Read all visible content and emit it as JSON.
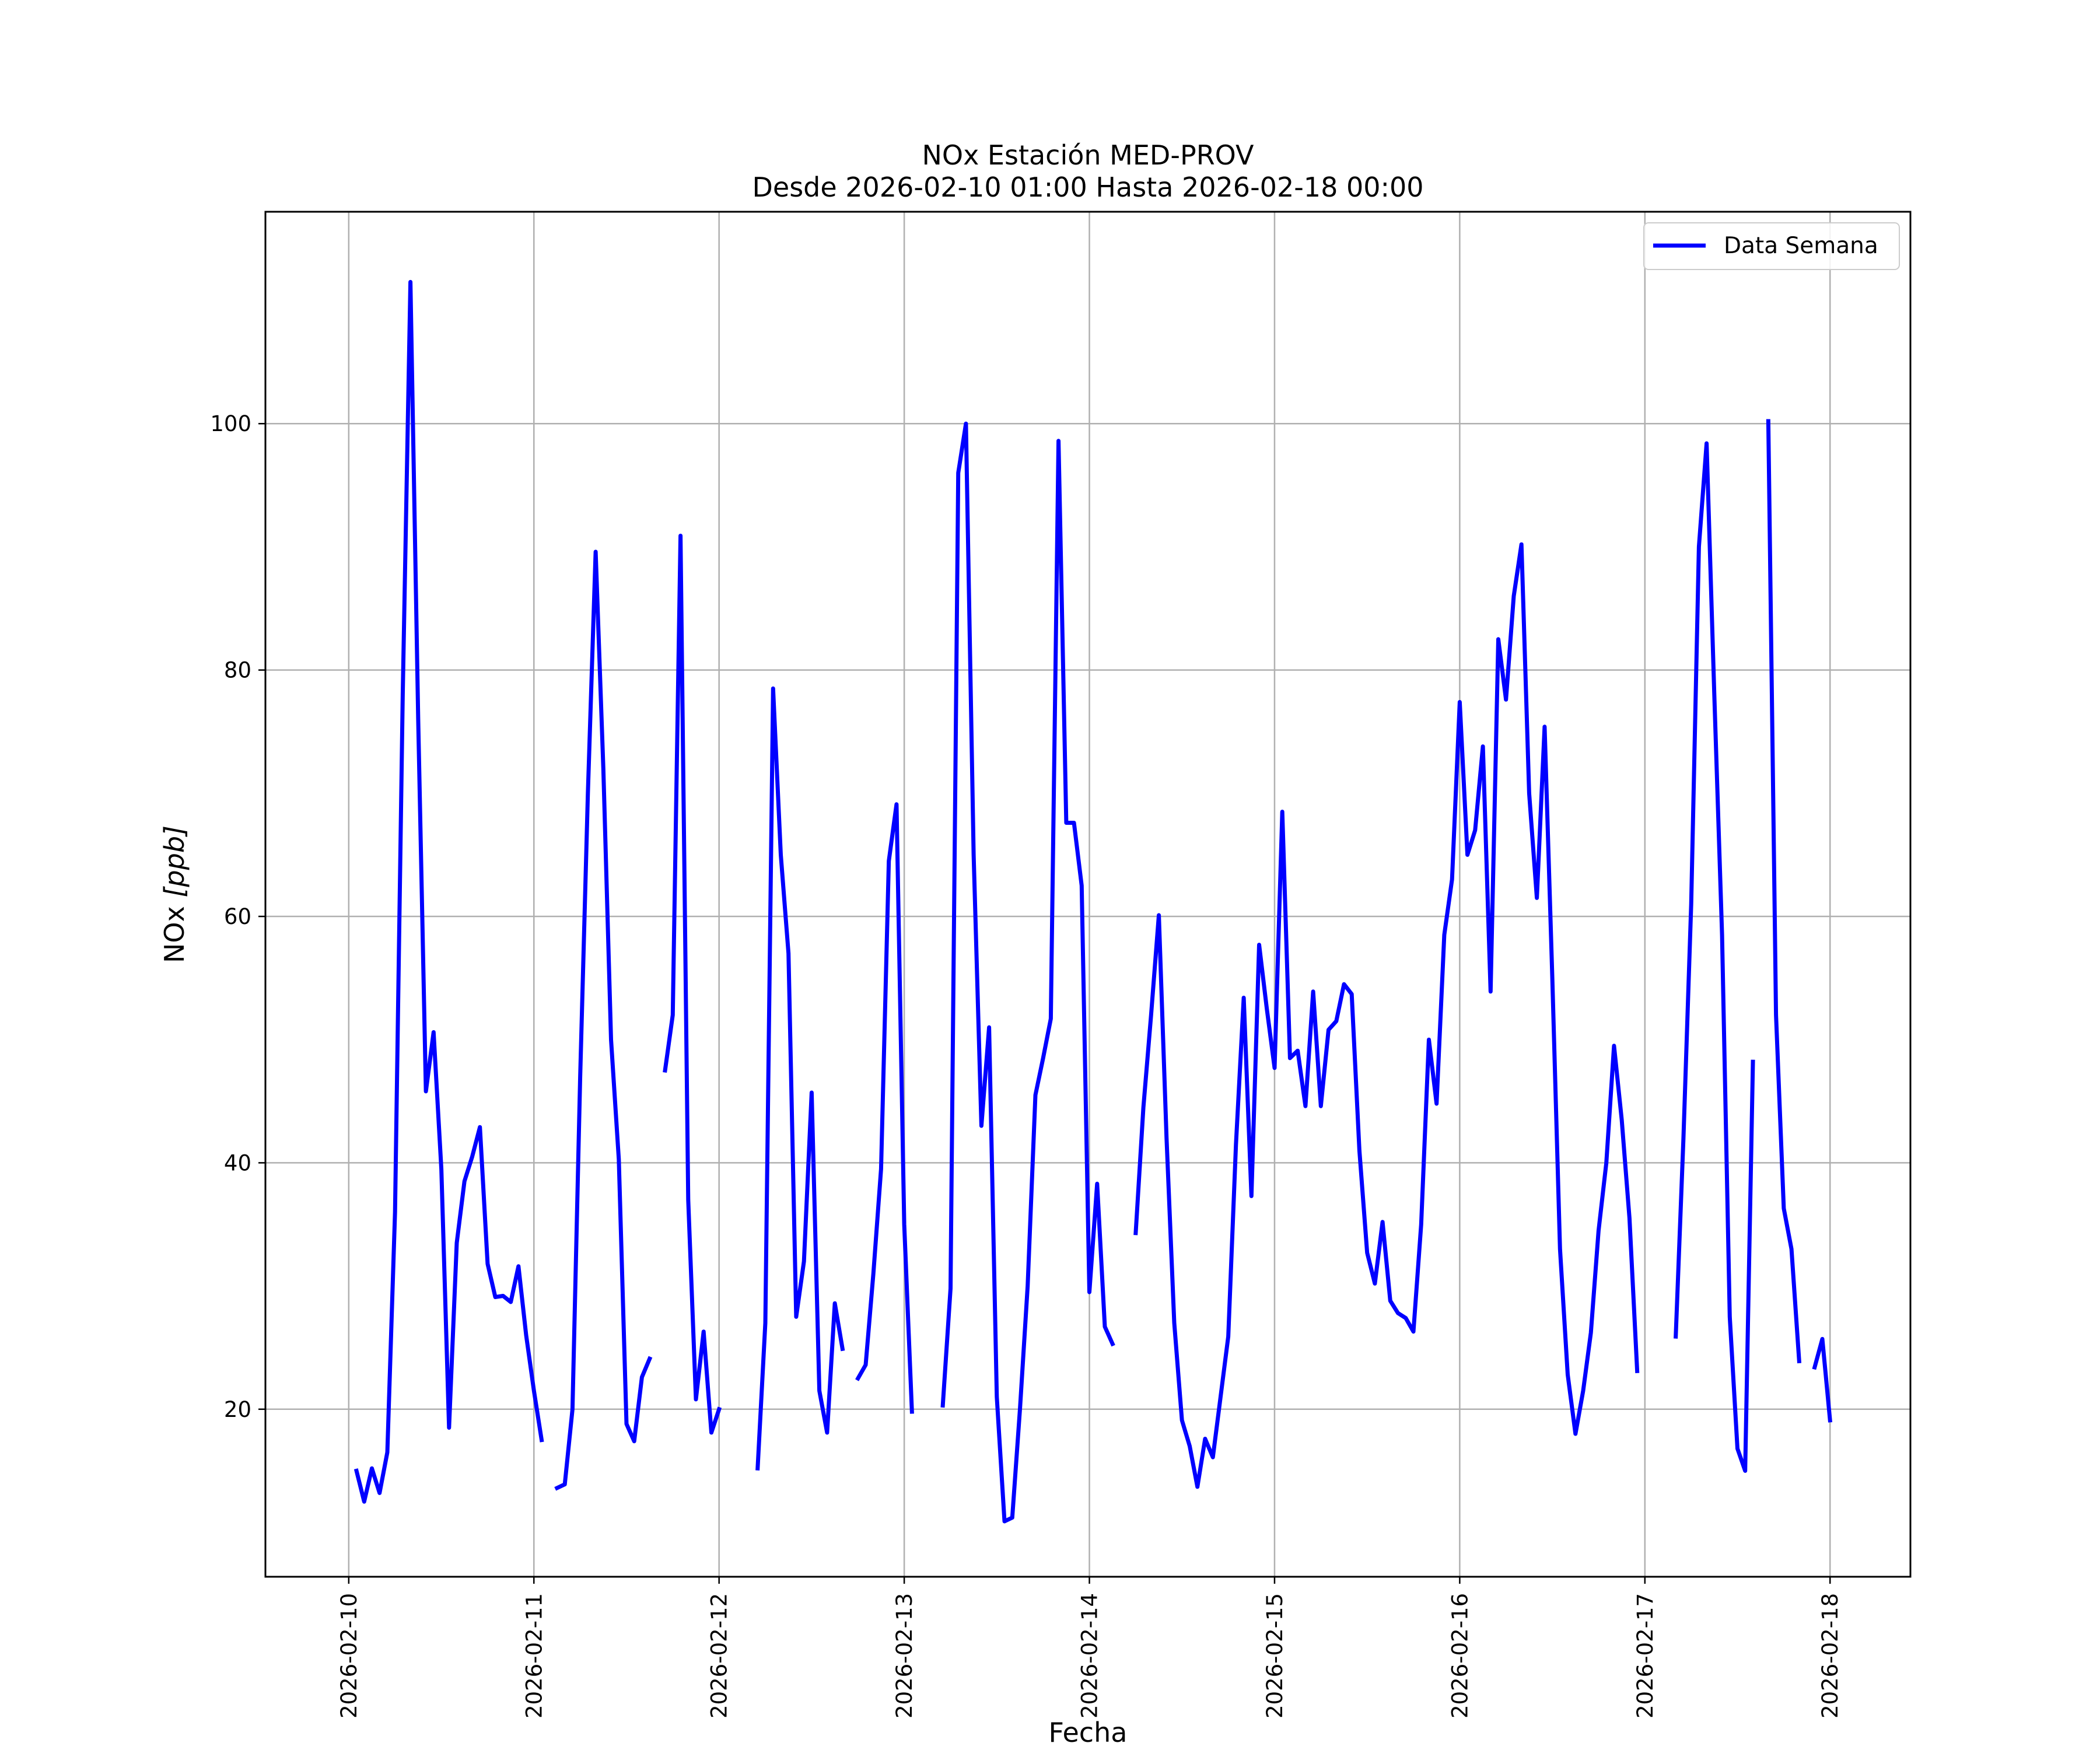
{
  "chart_data": {
    "type": "line",
    "title": "NOx Estación MED-PROV",
    "subtitle": "Desde 2026-02-10 01:00 Hasta 2026-02-18 00:00",
    "xlabel": "Fecha",
    "ylabel_main": "NOx",
    "ylabel_unit": "[ppb]",
    "x_ticks": [
      "2026-02-10",
      "2026-02-11",
      "2026-02-12",
      "2026-02-13",
      "2026-02-14",
      "2026-02-15",
      "2026-02-16",
      "2026-02-17",
      "2026-02-18"
    ],
    "y_ticks": [
      20,
      40,
      60,
      80,
      100
    ],
    "xlim": [
      "2026-02-09 13:12",
      "2026-02-18 10:25"
    ],
    "ylim": [
      6.4,
      117.2
    ],
    "grid": true,
    "legend_position": "top-right",
    "colors": {
      "series": "#0000ff",
      "grid": "#b0b0b0"
    },
    "series": [
      {
        "name": "Data Semana",
        "segments": [
          [
            [
              "2026-02-10 01:00",
              15.0
            ],
            [
              "2026-02-10 02:00",
              12.5
            ],
            [
              "2026-02-10 03:00",
              15.2
            ],
            [
              "2026-02-10 04:00",
              13.2
            ],
            [
              "2026-02-10 05:00",
              16.5
            ],
            [
              "2026-02-10 06:00",
              36.0
            ],
            [
              "2026-02-10 07:00",
              78.0
            ],
            [
              "2026-02-10 08:00",
              111.5
            ],
            [
              "2026-02-10 09:00",
              76.0
            ],
            [
              "2026-02-10 10:00",
              45.8
            ],
            [
              "2026-02-10 11:00",
              50.6
            ],
            [
              "2026-02-10 12:00",
              39.5
            ],
            [
              "2026-02-10 13:00",
              18.5
            ],
            [
              "2026-02-10 14:00",
              33.5
            ],
            [
              "2026-02-10 15:00",
              38.5
            ],
            [
              "2026-02-10 16:00",
              40.5
            ],
            [
              "2026-02-10 17:00",
              42.9
            ],
            [
              "2026-02-10 18:00",
              31.8
            ],
            [
              "2026-02-10 19:00",
              29.1
            ],
            [
              "2026-02-10 20:00",
              29.2
            ],
            [
              "2026-02-10 21:00",
              28.7
            ],
            [
              "2026-02-10 22:00",
              31.6
            ],
            [
              "2026-02-10 23:00",
              26.0
            ],
            [
              "2026-02-11 00:00",
              21.5
            ],
            [
              "2026-02-11 01:00",
              17.5
            ]
          ],
          [
            [
              "2026-02-11 03:00",
              13.6
            ],
            [
              "2026-02-11 04:00",
              13.9
            ],
            [
              "2026-02-11 05:00",
              20.0
            ],
            [
              "2026-02-11 06:00",
              47.0
            ],
            [
              "2026-02-11 07:00",
              70.0
            ],
            [
              "2026-02-11 08:00",
              89.6
            ],
            [
              "2026-02-11 09:00",
              72.0
            ],
            [
              "2026-02-11 10:00",
              50.0
            ],
            [
              "2026-02-11 11:00",
              40.3
            ],
            [
              "2026-02-11 12:00",
              18.8
            ],
            [
              "2026-02-11 13:00",
              17.4
            ],
            [
              "2026-02-11 14:00",
              22.6
            ],
            [
              "2026-02-11 15:00",
              24.1
            ]
          ],
          [
            [
              "2026-02-11 17:00",
              47.5
            ],
            [
              "2026-02-11 18:00",
              52.0
            ],
            [
              "2026-02-11 19:00",
              90.9
            ],
            [
              "2026-02-11 20:00",
              37.0
            ],
            [
              "2026-02-11 21:00",
              20.8
            ],
            [
              "2026-02-11 22:00",
              26.3
            ],
            [
              "2026-02-11 23:00",
              18.1
            ],
            [
              "2026-02-12 00:00",
              20.0
            ]
          ],
          [
            [
              "2026-02-12 05:00",
              15.2
            ],
            [
              "2026-02-12 06:00",
              27.0
            ],
            [
              "2026-02-12 07:00",
              78.5
            ],
            [
              "2026-02-12 08:00",
              65.0
            ],
            [
              "2026-02-12 09:00",
              57.0
            ],
            [
              "2026-02-12 10:00",
              27.5
            ],
            [
              "2026-02-12 11:00",
              32.0
            ],
            [
              "2026-02-12 12:00",
              45.7
            ],
            [
              "2026-02-12 13:00",
              21.5
            ],
            [
              "2026-02-12 14:00",
              18.1
            ],
            [
              "2026-02-12 15:00",
              28.6
            ],
            [
              "2026-02-12 16:00",
              24.9
            ]
          ],
          [
            [
              "2026-02-12 18:00",
              22.5
            ],
            [
              "2026-02-12 19:00",
              23.6
            ],
            [
              "2026-02-12 20:00",
              31.0
            ],
            [
              "2026-02-12 21:00",
              39.5
            ],
            [
              "2026-02-12 22:00",
              64.5
            ],
            [
              "2026-02-12 23:00",
              69.1
            ],
            [
              "2026-02-13 00:00",
              35.0
            ],
            [
              "2026-02-13 01:00",
              19.8
            ]
          ],
          [
            [
              "2026-02-13 05:00",
              20.3
            ],
            [
              "2026-02-13 06:00",
              29.8
            ],
            [
              "2026-02-13 07:00",
              96.0
            ],
            [
              "2026-02-13 08:00",
              100.0
            ],
            [
              "2026-02-13 09:00",
              65.0
            ],
            [
              "2026-02-13 10:00",
              43.0
            ],
            [
              "2026-02-13 11:00",
              51.0
            ],
            [
              "2026-02-13 12:00",
              21.0
            ],
            [
              "2026-02-13 13:00",
              10.9
            ],
            [
              "2026-02-13 14:00",
              11.2
            ],
            [
              "2026-02-13 15:00",
              20.0
            ],
            [
              "2026-02-13 16:00",
              30.0
            ],
            [
              "2026-02-13 17:00",
              45.5
            ],
            [
              "2026-02-13 18:00",
              48.5
            ],
            [
              "2026-02-13 19:00",
              51.7
            ],
            [
              "2026-02-13 20:00",
              98.6
            ],
            [
              "2026-02-13 21:00",
              67.6
            ],
            [
              "2026-02-13 22:00",
              67.6
            ],
            [
              "2026-02-13 23:00",
              62.5
            ],
            [
              "2026-02-14 00:00",
              29.5
            ],
            [
              "2026-02-14 01:00",
              38.3
            ],
            [
              "2026-02-14 02:00",
              26.7
            ],
            [
              "2026-02-14 03:00",
              25.3
            ]
          ],
          [
            [
              "2026-02-14 06:00",
              34.3
            ],
            [
              "2026-02-14 07:00",
              44.5
            ],
            [
              "2026-02-14 08:00",
              52.0
            ],
            [
              "2026-02-14 09:00",
              60.1
            ],
            [
              "2026-02-14 10:00",
              42.0
            ],
            [
              "2026-02-14 11:00",
              27.0
            ],
            [
              "2026-02-14 12:00",
              19.1
            ],
            [
              "2026-02-14 13:00",
              17.0
            ],
            [
              "2026-02-14 14:00",
              13.7
            ],
            [
              "2026-02-14 15:00",
              17.6
            ],
            [
              "2026-02-14 16:00",
              16.1
            ],
            [
              "2026-02-14 17:00",
              21.0
            ],
            [
              "2026-02-14 18:00",
              25.9
            ],
            [
              "2026-02-14 19:00",
              41.5
            ],
            [
              "2026-02-14 20:00",
              53.4
            ],
            [
              "2026-02-14 21:00",
              37.3
            ],
            [
              "2026-02-14 22:00",
              57.7
            ],
            [
              "2026-02-14 23:00",
              52.5
            ],
            [
              "2026-02-15 00:00",
              47.7
            ],
            [
              "2026-02-15 01:00",
              68.5
            ],
            [
              "2026-02-15 02:00",
              48.5
            ],
            [
              "2026-02-15 03:00",
              49.1
            ],
            [
              "2026-02-15 04:00",
              44.6
            ],
            [
              "2026-02-15 05:00",
              53.9
            ],
            [
              "2026-02-15 06:00",
              44.6
            ],
            [
              "2026-02-15 07:00",
              50.8
            ],
            [
              "2026-02-15 08:00",
              51.5
            ],
            [
              "2026-02-15 09:00",
              54.5
            ],
            [
              "2026-02-15 10:00",
              53.7
            ],
            [
              "2026-02-15 11:00",
              41.0
            ],
            [
              "2026-02-15 12:00",
              32.7
            ],
            [
              "2026-02-15 13:00",
              30.2
            ],
            [
              "2026-02-15 14:00",
              35.2
            ],
            [
              "2026-02-15 15:00",
              28.8
            ],
            [
              "2026-02-15 16:00",
              27.8
            ],
            [
              "2026-02-15 17:00",
              27.4
            ],
            [
              "2026-02-15 18:00",
              26.3
            ],
            [
              "2026-02-15 19:00",
              35.0
            ],
            [
              "2026-02-15 20:00",
              50.0
            ],
            [
              "2026-02-15 21:00",
              44.8
            ],
            [
              "2026-02-15 22:00",
              58.5
            ],
            [
              "2026-02-15 23:00",
              63.0
            ],
            [
              "2026-02-16 00:00",
              77.4
            ],
            [
              "2026-02-16 01:00",
              65.0
            ],
            [
              "2026-02-16 02:00",
              67.0
            ],
            [
              "2026-02-16 03:00",
              73.8
            ],
            [
              "2026-02-16 04:00",
              53.9
            ],
            [
              "2026-02-16 05:00",
              82.5
            ],
            [
              "2026-02-16 06:00",
              77.6
            ],
            [
              "2026-02-16 07:00",
              86.0
            ],
            [
              "2026-02-16 08:00",
              90.2
            ],
            [
              "2026-02-16 09:00",
              70.0
            ],
            [
              "2026-02-16 10:00",
              61.5
            ],
            [
              "2026-02-16 11:00",
              75.4
            ],
            [
              "2026-02-16 12:00",
              55.0
            ],
            [
              "2026-02-16 13:00",
              33.0
            ],
            [
              "2026-02-16 14:00",
              22.8
            ],
            [
              "2026-02-16 15:00",
              18.0
            ],
            [
              "2026-02-16 16:00",
              21.5
            ],
            [
              "2026-02-16 17:00",
              26.2
            ],
            [
              "2026-02-16 18:00",
              34.5
            ],
            [
              "2026-02-16 19:00",
              40.0
            ],
            [
              "2026-02-16 20:00",
              49.5
            ],
            [
              "2026-02-16 21:00",
              43.5
            ],
            [
              "2026-02-16 22:00",
              35.5
            ],
            [
              "2026-02-16 23:00",
              23.1
            ]
          ],
          [
            [
              "2026-02-17 04:00",
              25.9
            ],
            [
              "2026-02-17 05:00",
              42.0
            ],
            [
              "2026-02-17 06:00",
              61.0
            ],
            [
              "2026-02-17 07:00",
              90.0
            ],
            [
              "2026-02-17 08:00",
              98.4
            ],
            [
              "2026-02-17 09:00",
              78.0
            ],
            [
              "2026-02-17 10:00",
              58.5
            ],
            [
              "2026-02-17 11:00",
              27.5
            ],
            [
              "2026-02-17 12:00",
              16.8
            ],
            [
              "2026-02-17 13:00",
              15.0
            ],
            [
              "2026-02-17 14:00",
              48.2
            ]
          ],
          [
            [
              "2026-02-17 16:00",
              100.2
            ],
            [
              "2026-02-17 17:00",
              52.0
            ],
            [
              "2026-02-17 18:00",
              36.3
            ],
            [
              "2026-02-17 19:00",
              33.0
            ],
            [
              "2026-02-17 20:00",
              23.9
            ]
          ],
          [
            [
              "2026-02-17 22:00",
              23.4
            ],
            [
              "2026-02-17 23:00",
              25.7
            ],
            [
              "2026-02-18 00:00",
              19.1
            ]
          ]
        ]
      }
    ]
  }
}
